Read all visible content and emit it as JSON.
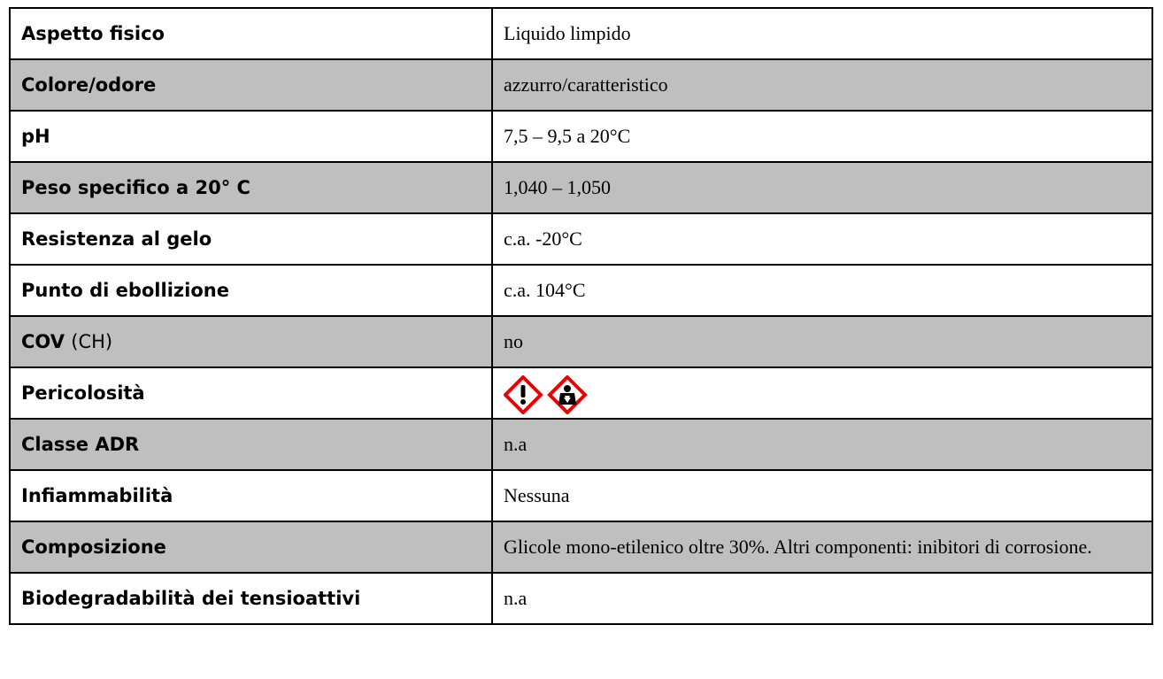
{
  "table": {
    "rows": [
      {
        "label": "Aspetto fisico",
        "value": "Liquido limpido",
        "shaded": false
      },
      {
        "label": "Colore/odore",
        "value": "azzurro/caratteristico",
        "shaded": true
      },
      {
        "label": "pH",
        "value": "7,5 – 9,5 a 20°C",
        "shaded": false
      },
      {
        "label": "Peso specifico a 20° C",
        "value": "1,040 – 1,050",
        "shaded": true
      },
      {
        "label": "Resistenza al gelo",
        "value": "c.a. -20°C",
        "shaded": false
      },
      {
        "label": "Punto di ebollizione",
        "value": "c.a. 104°C",
        "shaded": false
      },
      {
        "label": "COV",
        "note": "(CH)",
        "value": "no",
        "shaded": true
      },
      {
        "label": "Pericolosità",
        "shaded": false,
        "pictograms": true
      },
      {
        "label": "Classe ADR",
        "value": "n.a",
        "shaded": true
      },
      {
        "label": "Infiammabilità",
        "value": "Nessuna",
        "shaded": false
      },
      {
        "label": "Composizione",
        "value": "Glicole mono-etilenico oltre 30%. Altri componenti: inibitori di corrosione.",
        "shaded": true
      },
      {
        "label": "Biodegradabilità dei tensioattivi",
        "value": "n.a",
        "shaded": false
      }
    ]
  }
}
